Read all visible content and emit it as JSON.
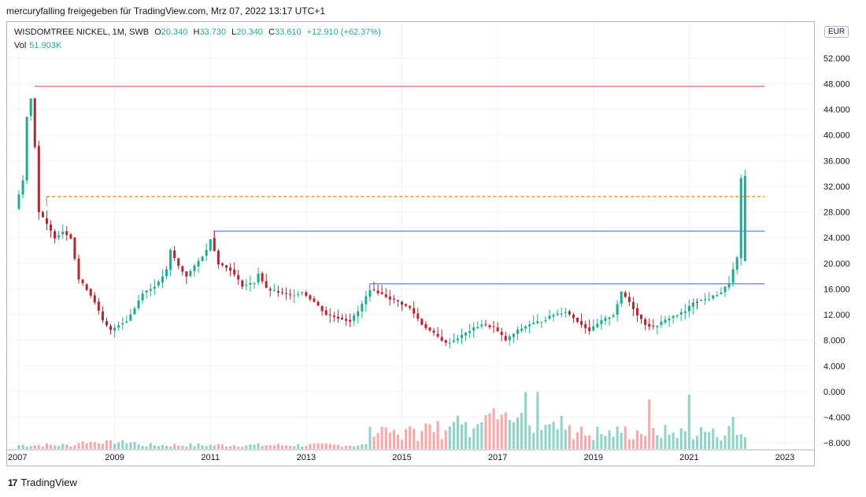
{
  "caption": "mercuryfalling freigegeben für TradingView.com, Mrz 07, 2022 13:17 UTC+1",
  "legend": {
    "symbol": "WISDOMTREE NICKEL, 1M, SWB",
    "open_label": "O",
    "open": "20.340",
    "high_label": "H",
    "high": "33.730",
    "low_label": "L",
    "low": "20.340",
    "close_label": "C",
    "close": "33.610",
    "change": "+12.910 (+62.37%)",
    "vol_label": "Vol",
    "vol": "51.903K"
  },
  "currency": "EUR",
  "logo": {
    "text": "TradingView",
    "icon": "tradingview-logo-icon"
  },
  "colors": {
    "up": "#22ab94",
    "down": "#b22833",
    "vol_up": "#8fd3c6",
    "vol_down": "#f7a8ab",
    "red_line": "#e06670",
    "orange_line": "#f57c00",
    "blue_line": "#2962ff",
    "grid": "#f0f3fa"
  },
  "chart_data": {
    "type": "candlestick",
    "x_axis": {
      "ticks": [
        "2007",
        "2009",
        "2011",
        "2013",
        "2015",
        "2017",
        "2019",
        "2021",
        "2023"
      ]
    },
    "y_axis": {
      "ticks": [
        "52.000",
        "48.000",
        "44.000",
        "40.000",
        "36.000",
        "32.000",
        "28.000",
        "24.000",
        "20.000",
        "16.000",
        "12.000",
        "8.000",
        "4.000",
        "0.000",
        "−4.000",
        "−8.000"
      ],
      "range": [
        -8.6,
        56.4
      ]
    },
    "horizontal_lines": [
      {
        "from": 2007.33,
        "to": 2022.58,
        "value": 47.6,
        "style": "solid",
        "color": "red"
      },
      {
        "from": 2007.58,
        "to": 2022.58,
        "value": 30.4,
        "style": "dashed",
        "color": "orange"
      },
      {
        "from": 2011.08,
        "to": 2022.58,
        "value": 25.0,
        "style": "solid",
        "color": "blue"
      },
      {
        "from": 2014.33,
        "to": 2022.58,
        "value": 16.8,
        "style": "solid",
        "color": "blue"
      }
    ],
    "anchors": [
      [
        2007.0,
        28.5
      ],
      [
        2007.17,
        33
      ],
      [
        2007.25,
        43
      ],
      [
        2007.33,
        46
      ],
      [
        2007.42,
        38
      ],
      [
        2007.5,
        28
      ],
      [
        2007.67,
        26
      ],
      [
        2007.83,
        24
      ],
      [
        2008.0,
        25
      ],
      [
        2008.17,
        24
      ],
      [
        2008.33,
        17.5
      ],
      [
        2008.5,
        16
      ],
      [
        2008.67,
        14
      ],
      [
        2008.83,
        11
      ],
      [
        2009.0,
        9.5
      ],
      [
        2009.17,
        10.5
      ],
      [
        2009.33,
        11
      ],
      [
        2009.5,
        13
      ],
      [
        2009.67,
        15.5
      ],
      [
        2009.83,
        16
      ],
      [
        2010.0,
        17
      ],
      [
        2010.17,
        19
      ],
      [
        2010.25,
        22
      ],
      [
        2010.42,
        19.5
      ],
      [
        2010.58,
        18
      ],
      [
        2010.75,
        19.5
      ],
      [
        2011.0,
        22
      ],
      [
        2011.08,
        24
      ],
      [
        2011.25,
        20
      ],
      [
        2011.5,
        19
      ],
      [
        2011.75,
        16.5
      ],
      [
        2012.0,
        17
      ],
      [
        2012.08,
        18.5
      ],
      [
        2012.25,
        16
      ],
      [
        2012.5,
        15.5
      ],
      [
        2012.75,
        15
      ],
      [
        2013.0,
        15.5
      ],
      [
        2013.25,
        14
      ],
      [
        2013.5,
        12
      ],
      [
        2013.75,
        11.5
      ],
      [
        2014.0,
        11
      ],
      [
        2014.17,
        12.5
      ],
      [
        2014.42,
        16
      ],
      [
        2014.58,
        15.5
      ],
      [
        2014.83,
        14.5
      ],
      [
        2015.0,
        14
      ],
      [
        2015.25,
        13
      ],
      [
        2015.5,
        10.5
      ],
      [
        2015.75,
        9
      ],
      [
        2015.92,
        8
      ],
      [
        2016.0,
        7.5
      ],
      [
        2016.17,
        8
      ],
      [
        2016.5,
        9.5
      ],
      [
        2016.75,
        10.5
      ],
      [
        2017.0,
        10
      ],
      [
        2017.25,
        8
      ],
      [
        2017.5,
        9.5
      ],
      [
        2017.75,
        10.5
      ],
      [
        2018.0,
        11
      ],
      [
        2018.25,
        12
      ],
      [
        2018.5,
        12.5
      ],
      [
        2018.75,
        11
      ],
      [
        2019.0,
        9.5
      ],
      [
        2019.25,
        11
      ],
      [
        2019.5,
        12
      ],
      [
        2019.67,
        15.5
      ],
      [
        2019.83,
        14
      ],
      [
        2020.0,
        12
      ],
      [
        2020.17,
        10.5
      ],
      [
        2020.33,
        10
      ],
      [
        2020.67,
        11.5
      ],
      [
        2021.0,
        12.5
      ],
      [
        2021.17,
        14
      ],
      [
        2021.5,
        14.5
      ],
      [
        2021.75,
        15.5
      ],
      [
        2021.92,
        17
      ],
      [
        2022.0,
        19
      ],
      [
        2022.08,
        20.3
      ],
      [
        2022.17,
        33.6
      ]
    ],
    "last_candle": {
      "date": "2022-03",
      "open": 20.34,
      "high": 33.73,
      "low": 20.34,
      "close": 33.61
    },
    "volume_peaks": [
      {
        "x": 2015.58,
        "v": 5
      },
      {
        "x": 2016.08,
        "v": 5.5
      },
      {
        "x": 2017.58,
        "v": 11.5
      },
      {
        "x": 2017.83,
        "v": 11.5
      },
      {
        "x": 2020.17,
        "v": 10
      },
      {
        "x": 2021.0,
        "v": 11
      },
      {
        "x": 2021.92,
        "v": 6.5
      }
    ]
  }
}
